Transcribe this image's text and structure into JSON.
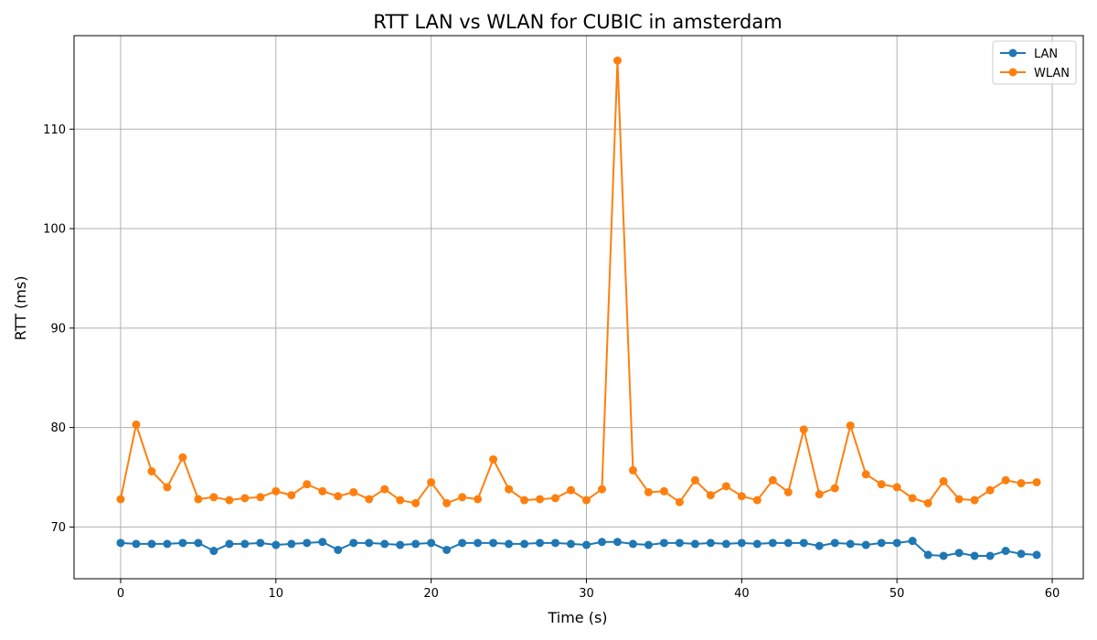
{
  "chart_data": {
    "type": "line",
    "title": "RTT LAN vs WLAN for CUBIC in amsterdam",
    "xlabel": "Time (s)",
    "ylabel": "RTT (ms)",
    "xlim": [
      -3,
      62
    ],
    "ylim": [
      64.8,
      119.4
    ],
    "xticks": [
      0,
      10,
      20,
      30,
      40,
      50,
      60
    ],
    "yticks": [
      70,
      80,
      90,
      100,
      110
    ],
    "grid": true,
    "legend_position": "top-right",
    "x": [
      0,
      1,
      2,
      3,
      4,
      5,
      6,
      7,
      8,
      9,
      10,
      11,
      12,
      13,
      14,
      15,
      16,
      17,
      18,
      19,
      20,
      21,
      22,
      23,
      24,
      25,
      26,
      27,
      28,
      29,
      30,
      31,
      32,
      33,
      34,
      35,
      36,
      37,
      38,
      39,
      40,
      41,
      42,
      43,
      44,
      45,
      46,
      47,
      48,
      49,
      50,
      51,
      52,
      53,
      54,
      55,
      56,
      57,
      58,
      59
    ],
    "series": [
      {
        "name": "LAN",
        "color": "#1f77b4",
        "values": [
          68.4,
          68.3,
          68.3,
          68.3,
          68.4,
          68.4,
          67.6,
          68.3,
          68.3,
          68.4,
          68.2,
          68.3,
          68.4,
          68.5,
          67.7,
          68.4,
          68.4,
          68.3,
          68.2,
          68.3,
          68.4,
          67.7,
          68.4,
          68.4,
          68.4,
          68.3,
          68.3,
          68.4,
          68.4,
          68.3,
          68.2,
          68.5,
          68.5,
          68.3,
          68.2,
          68.4,
          68.4,
          68.3,
          68.4,
          68.3,
          68.4,
          68.3,
          68.4,
          68.4,
          68.4,
          68.1,
          68.4,
          68.3,
          68.2,
          68.4,
          68.4,
          68.6,
          67.2,
          67.1,
          67.4,
          67.1,
          67.1,
          67.6,
          67.3,
          67.2
        ]
      },
      {
        "name": "WLAN",
        "color": "#ff7f0e",
        "values": [
          72.8,
          80.3,
          75.6,
          74.0,
          77.0,
          72.8,
          73.0,
          72.7,
          72.9,
          73.0,
          73.6,
          73.2,
          74.3,
          73.6,
          73.1,
          73.5,
          72.8,
          73.8,
          72.7,
          72.4,
          74.5,
          72.4,
          73.0,
          72.8,
          76.8,
          73.8,
          72.7,
          72.8,
          72.9,
          73.7,
          72.7,
          73.8,
          116.9,
          75.7,
          73.5,
          73.6,
          72.5,
          74.7,
          73.2,
          74.1,
          73.1,
          72.7,
          74.7,
          73.5,
          79.8,
          73.3,
          73.9,
          80.2,
          75.3,
          74.3,
          74.0,
          72.9,
          72.4,
          74.6,
          72.8,
          72.7,
          73.7,
          74.7,
          74.4,
          74.5
        ]
      }
    ]
  }
}
